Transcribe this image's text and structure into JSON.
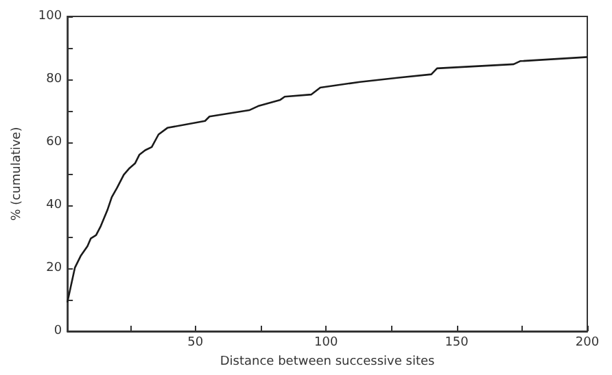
{
  "chart_data": {
    "type": "line",
    "xlabel": "Distance between successive sites",
    "ylabel": "% (cumulative)",
    "xlim": [
      1,
      200
    ],
    "xticks": [
      {
        "value": 25,
        "label": null
      },
      50,
      {
        "value": 75,
        "label": null
      },
      100,
      {
        "value": 125,
        "label": null
      },
      150,
      {
        "value": 175,
        "label": null
      },
      200
    ],
    "ylim": [
      0,
      100
    ],
    "yticks": [
      0,
      {
        "value": 10,
        "label": null
      },
      20,
      {
        "value": 30,
        "label": null
      },
      40,
      {
        "value": 50,
        "label": null
      },
      60,
      {
        "value": 70,
        "label": null
      },
      80,
      {
        "value": 90,
        "label": null
      },
      100
    ],
    "grid": false,
    "marker": "none",
    "line_style": "solid",
    "series": [
      {
        "color": "#1a1a1a",
        "x": [
          1,
          3.9,
          6.1,
          8.7,
          10,
          12,
          13.8,
          16.3,
          18,
          20,
          22.6,
          24.8,
          26.9,
          28.6,
          30.8,
          33.3,
          35.9,
          39.3,
          53.7,
          55.4,
          70.6,
          74,
          82.5,
          84.2,
          94.4,
          97.8,
          113,
          128.4,
          140.3,
          142.5,
          171.8,
          174.3,
          200
        ],
        "values": [
          9.2,
          20.2,
          23.9,
          27,
          29.5,
          30.5,
          33.4,
          38.4,
          42.6,
          45.5,
          49.7,
          51.8,
          53.3,
          56.1,
          57.5,
          58.5,
          62.5,
          64.6,
          66.8,
          68.2,
          70.2,
          71.5,
          73.5,
          74.5,
          75.2,
          77.4,
          79.2,
          80.6,
          81.6,
          83.5,
          84.8,
          85.8,
          87.1
        ]
      }
    ]
  }
}
